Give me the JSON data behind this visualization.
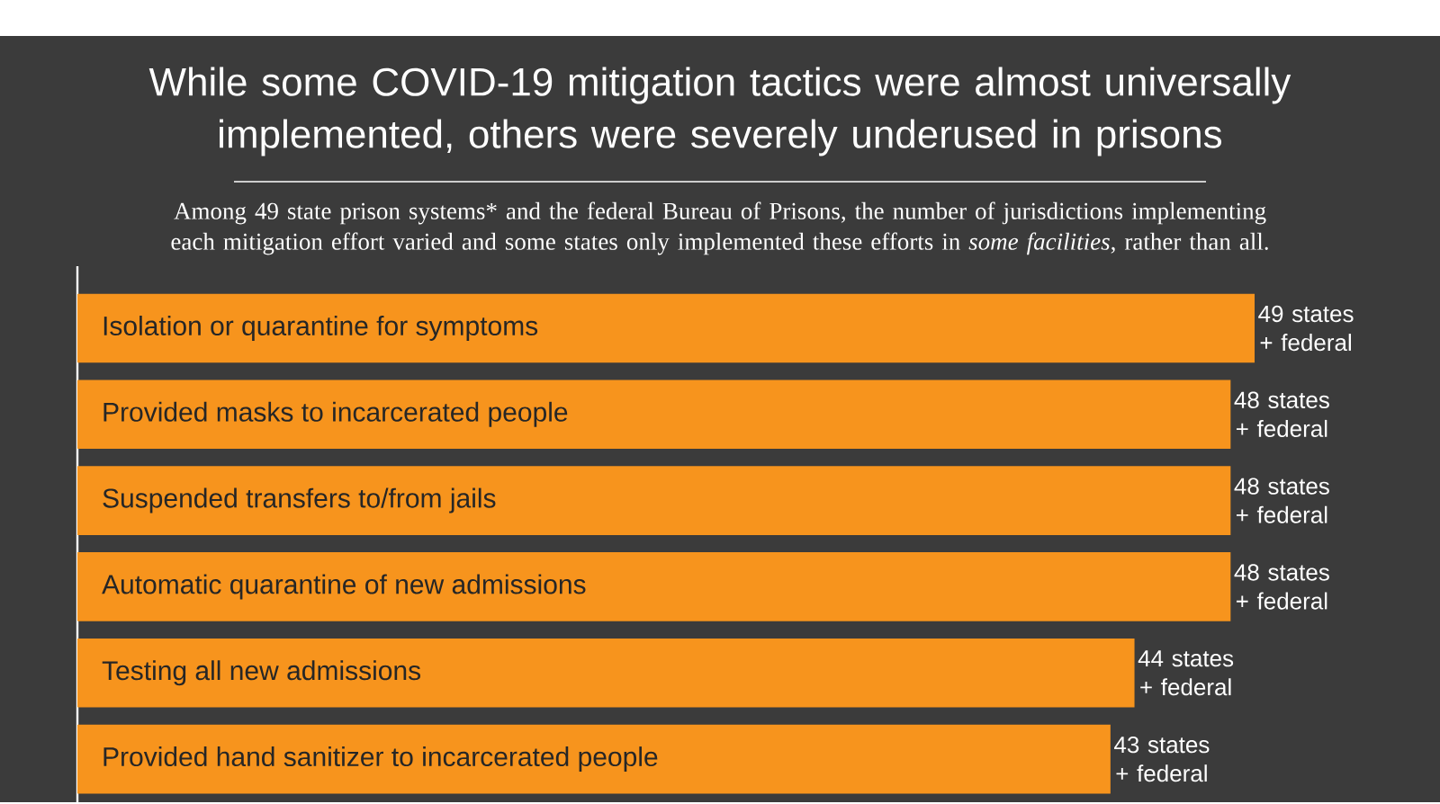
{
  "chart_data": {
    "type": "bar",
    "orientation": "horizontal",
    "title": "While some COVID-19 mitigation tactics were almost universally implemented, others were severely underused in prisons",
    "subtitle": "Among 49 state prison systems* and the federal Bureau of Prisons, the number of jurisdictions implementing each mitigation effort varied and some states only implemented these efforts in *some facilities*, rather than all.",
    "categories": [
      "Isolation or quarantine for symptoms",
      "Provided masks to incarcerated people",
      "Suspended transfers to/from jails",
      "Automatic quarantine of new admissions",
      "Testing all new admissions",
      "Provided hand sanitizer to incarcerated people"
    ],
    "values": [
      49,
      48,
      48,
      48,
      44,
      43
    ],
    "value_labels": [
      "49 states + federal",
      "48 states + federal",
      "48 states + federal",
      "48 states + federal",
      "44 states + federal",
      "43 states + federal"
    ],
    "color": "#f7941d"
  }
}
